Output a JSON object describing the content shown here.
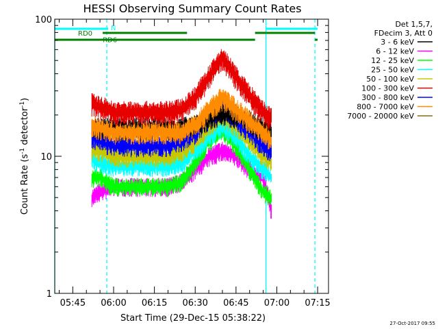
{
  "chart_data": {
    "type": "line",
    "title": "HESSI Observing Summary Count Rates",
    "ylabel_main": "Count Rate (s",
    "ylabel_sup": "-1",
    "ylabel_mid": " detector",
    "ylabel_end": ")",
    "xlabel": "Start Time (29-Dec-15 05:38:22)",
    "timestamp": "27-Oct-2017 09:55",
    "y_scale": "log",
    "ylim": [
      1,
      100
    ],
    "xlim": [
      "05:38:22",
      "07:19:00"
    ],
    "x_ticks": [
      "05:45",
      "06:00",
      "06:15",
      "06:30",
      "06:45",
      "07:00",
      "07:15"
    ],
    "y_ticks": [
      "1",
      "10",
      "100"
    ],
    "legend": {
      "placement": "right",
      "header": [
        "Det 1,5,7,",
        "FDecim 3, Att 0"
      ],
      "entries": [
        {
          "label": "3 - 6 keV",
          "color": "#000000"
        },
        {
          "label": "6 - 12 keV",
          "color": "#ff00ff"
        },
        {
          "label": "12 - 25 keV",
          "color": "#00ff00"
        },
        {
          "label": "25 - 50 keV",
          "color": "#00ffff"
        },
        {
          "label": "50 - 100 keV",
          "color": "#c8c800"
        },
        {
          "label": "100 - 300 keV",
          "color": "#e60000"
        },
        {
          "label": "300 - 800 keV",
          "color": "#0000ff"
        },
        {
          "label": "800 - 7000 keV",
          "color": "#ff8c00"
        },
        {
          "label": "7000 - 20000 keV",
          "color": "#8b6914"
        }
      ]
    },
    "flags": [
      {
        "label": "N",
        "color": "#00ffff",
        "segments": [
          [
            "05:38:22",
            "05:58:00"
          ],
          [
            "06:56:00",
            "07:15:00"
          ]
        ]
      },
      {
        "label": "RD0",
        "color": "#008000",
        "segments": [
          [
            "05:56:00",
            "06:27:00"
          ],
          [
            "06:52:00",
            "07:14:00"
          ]
        ]
      },
      {
        "label": "RD6",
        "color": "#008000",
        "segments": [
          [
            "05:38:22",
            "05:57:00"
          ],
          [
            "05:57:00",
            "06:27:00"
          ],
          [
            "06:27:00",
            "06:52:00"
          ],
          [
            "07:14:00",
            "07:15:00"
          ]
        ]
      }
    ],
    "vertical_markers": [
      {
        "time": "05:57:30",
        "color": "#00ffff",
        "style": "dashed"
      },
      {
        "time": "06:56:00",
        "color": "#00ffff",
        "style": "solid"
      },
      {
        "time": "07:14:00",
        "color": "#00ffff",
        "style": "dashed"
      },
      {
        "time": "05:38:22",
        "color": "#00ffff",
        "style": "solid"
      }
    ],
    "x_times": [
      "05:52",
      "05:55",
      "06:00",
      "06:05",
      "06:10",
      "06:15",
      "06:20",
      "06:25",
      "06:30",
      "06:35",
      "06:40",
      "06:45",
      "06:50",
      "06:55",
      "06:58"
    ],
    "series": [
      {
        "name": "100 - 300 keV",
        "color": "#e60000",
        "values": [
          24,
          23,
          21,
          21,
          21,
          21,
          21,
          22,
          27,
          38,
          53,
          38,
          28,
          21,
          19
        ]
      },
      {
        "name": "800 - 7000 keV",
        "color": "#ff8c00",
        "values": [
          17,
          16,
          15,
          15,
          15,
          15,
          15,
          15,
          17,
          22,
          27,
          22,
          18,
          15,
          13
        ]
      },
      {
        "name": "3 - 6 keV",
        "color": "#000000",
        "values": [
          16,
          16,
          16,
          16,
          16,
          16,
          16,
          16,
          17,
          19,
          21,
          20,
          18,
          16,
          15
        ]
      },
      {
        "name": "300 - 800 keV",
        "color": "#0000ff",
        "values": [
          14,
          13,
          12,
          12,
          12,
          12,
          12,
          13,
          15,
          19,
          22,
          19,
          15,
          12,
          11
        ]
      },
      {
        "name": "50 - 100 keV",
        "color": "#c8c800",
        "values": [
          11,
          11,
          10,
          10,
          10,
          10,
          10,
          11,
          13,
          17,
          20,
          17,
          13,
          10,
          9
        ]
      },
      {
        "name": "25 - 50 keV",
        "color": "#00ffff",
        "values": [
          9.5,
          9,
          8.5,
          8.5,
          8.5,
          8.5,
          8.5,
          9,
          11,
          14,
          17,
          14,
          10,
          8,
          7
        ]
      },
      {
        "name": "12 - 25 keV",
        "color": "#00ff00",
        "values": [
          7,
          7,
          6,
          6,
          6,
          6,
          6,
          6.5,
          9,
          13,
          16,
          12,
          8,
          5.5,
          5
        ]
      },
      {
        "name": "6 - 12 keV",
        "color": "#ff00ff",
        "values": [
          5,
          5.5,
          6,
          6,
          6,
          6,
          6,
          6.5,
          8,
          10,
          11,
          10,
          8,
          7,
          4
        ]
      }
    ]
  }
}
